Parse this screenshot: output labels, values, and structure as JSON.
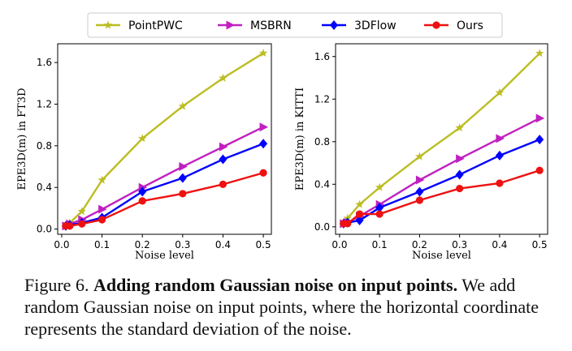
{
  "caption": {
    "label": "Figure 6.",
    "title": "Adding random Gaussian noise on input points.",
    "text": "We add random Gaussian noise on input points, where the horizontal coordinate represents the standard deviation of the noise."
  },
  "legend": {
    "placement": "top-center",
    "entries": [
      "PointPWC",
      "MSBRN",
      "3DFlow",
      "Ours"
    ]
  },
  "series_style": [
    {
      "name": "PointPWC",
      "color": "#bcbd22",
      "marker": "star"
    },
    {
      "name": "MSBRN",
      "color": "#c020c0",
      "marker": "triangle-right"
    },
    {
      "name": "3DFlow",
      "color": "#0000ff",
      "marker": "diamond"
    },
    {
      "name": "Ours",
      "color": "#ee1111",
      "marker": "circle"
    }
  ],
  "chart_data": [
    {
      "type": "line",
      "xlabel": "Noise level",
      "ylabel": "EPE3D(m) in FT3D",
      "xlim": [
        -0.01,
        0.52
      ],
      "ylim": [
        -0.05,
        1.78
      ],
      "xticks": [
        "0.0",
        "0.1",
        "0.2",
        "0.3",
        "0.4",
        "0.5"
      ],
      "yticks": [
        "0.0",
        "0.4",
        "0.8",
        "1.2",
        "1.6"
      ],
      "grid": false,
      "x": [
        0.01,
        0.02,
        0.05,
        0.1,
        0.2,
        0.3,
        0.4,
        0.5
      ],
      "series": [
        {
          "name": "PointPWC",
          "values": [
            0.04,
            0.06,
            0.17,
            0.47,
            0.87,
            1.18,
            1.45,
            1.69
          ]
        },
        {
          "name": "MSBRN",
          "values": [
            0.03,
            0.05,
            0.09,
            0.19,
            0.4,
            0.6,
            0.79,
            0.98
          ]
        },
        {
          "name": "3DFlow",
          "values": [
            0.03,
            0.04,
            0.06,
            0.11,
            0.36,
            0.49,
            0.67,
            0.82
          ]
        },
        {
          "name": "Ours",
          "values": [
            0.03,
            0.03,
            0.05,
            0.09,
            0.27,
            0.34,
            0.43,
            0.54
          ]
        }
      ]
    },
    {
      "type": "line",
      "xlabel": "Noise level",
      "ylabel": "EPE3D(m) in KITTI",
      "xlim": [
        -0.01,
        0.52
      ],
      "ylim": [
        -0.07,
        1.72
      ],
      "xticks": [
        "0.0",
        "0.1",
        "0.2",
        "0.3",
        "0.4",
        "0.5"
      ],
      "yticks": [
        "0.0",
        "0.4",
        "0.8",
        "1.2",
        "1.6"
      ],
      "grid": false,
      "x": [
        0.01,
        0.02,
        0.05,
        0.1,
        0.2,
        0.3,
        0.4,
        0.5
      ],
      "series": [
        {
          "name": "PointPWC",
          "values": [
            0.04,
            0.08,
            0.21,
            0.37,
            0.66,
            0.93,
            1.26,
            1.63
          ]
        },
        {
          "name": "MSBRN",
          "values": [
            0.03,
            0.04,
            0.1,
            0.21,
            0.44,
            0.64,
            0.83,
            1.02
          ]
        },
        {
          "name": "3DFlow",
          "values": [
            0.03,
            0.04,
            0.06,
            0.18,
            0.33,
            0.49,
            0.67,
            0.82
          ]
        },
        {
          "name": "Ours",
          "values": [
            0.03,
            0.03,
            0.12,
            0.12,
            0.25,
            0.36,
            0.41,
            0.53
          ]
        }
      ]
    }
  ]
}
